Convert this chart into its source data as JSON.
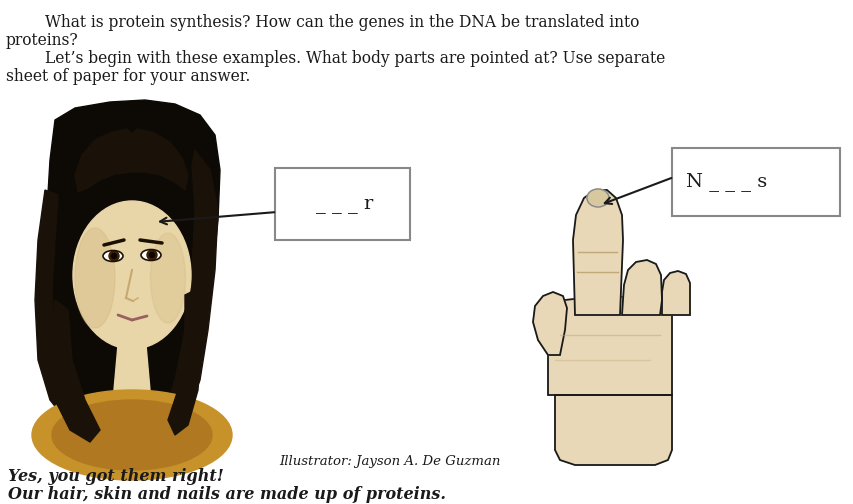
{
  "background_color": "#ffffff",
  "title_text1": "        What is protein synthesis? How can the genes in the DNA be translated into",
  "title_text2": "proteins?",
  "title_text3": "        Let’s begin with these examples. What body parts are pointed at? Use separate",
  "title_text4": "sheet of paper for your answer.",
  "box1_text": "_ _ _ r",
  "box2_text": "N _ _ _ s",
  "caption": "Illustrator: Jayson A. De Guzman",
  "bottom_text1": "Yes, you got them right!",
  "bottom_text2": "Our hair, skin and nails are made up of proteins.",
  "text_color": "#1a1a1a",
  "box_edge_color": "#888888",
  "arrow_color": "#1a1a1a",
  "hair_color": "#1a1209",
  "hair_dark": "#0d0905",
  "skin_color": "#e8d5a8",
  "skin_shadow": "#d4b882",
  "cloth_color": "#c8922a",
  "hand_skin": "#e8d8b8",
  "font_size_body": 11.2,
  "font_size_box": 14,
  "font_size_caption": 9.5,
  "font_size_bottom": 11.5
}
